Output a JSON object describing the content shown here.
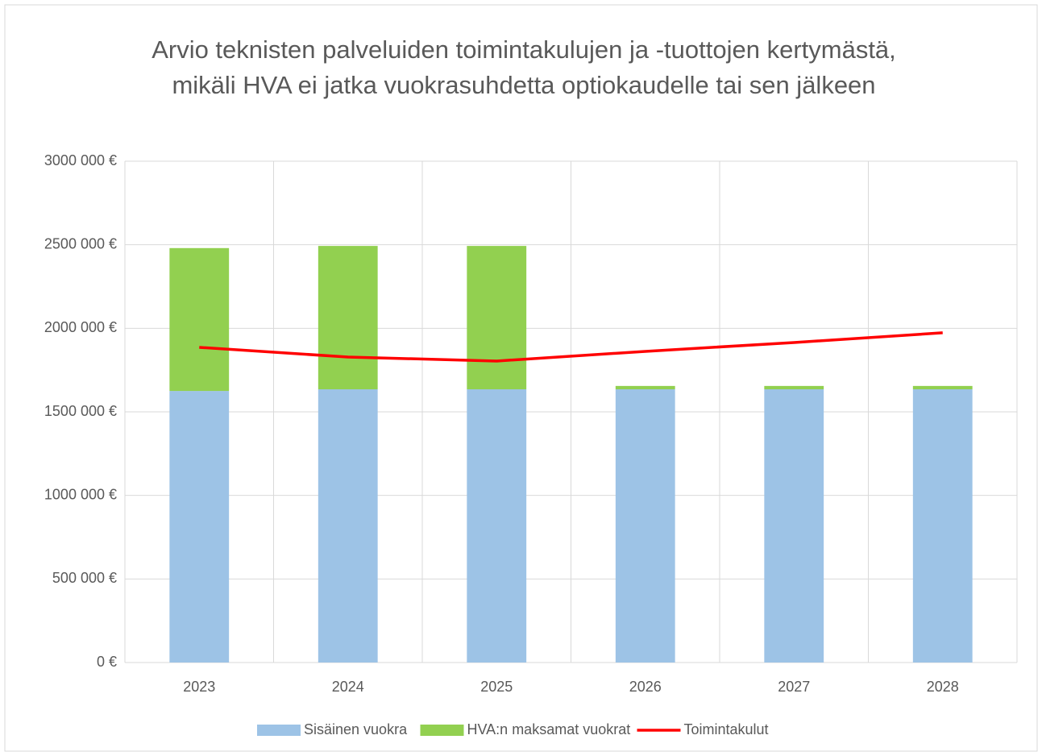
{
  "chart_data": {
    "type": "bar",
    "title": "Arvio teknisten palveluiden toimintakulujen ja -tuottojen kertymästä, mikäli HVA ei jatka vuokrasuhdetta optiokaudelle tai sen jälkeen",
    "categories": [
      "2023",
      "2024",
      "2025",
      "2026",
      "2027",
      "2028"
    ],
    "stacked": true,
    "series": [
      {
        "name": "Sisäinen vuokra",
        "type": "bar",
        "color": "#9dc3e6",
        "values": [
          1625000,
          1635000,
          1635000,
          1635000,
          1635000,
          1635000
        ]
      },
      {
        "name": "HVA:n maksamat vuokrat",
        "type": "bar",
        "color": "#92d050",
        "values": [
          855000,
          858000,
          858000,
          20000,
          20000,
          20000
        ]
      },
      {
        "name": "Toimintakulut",
        "type": "line",
        "color": "#ff0000",
        "values": [
          1886000,
          1828000,
          1804000,
          1862000,
          1915000,
          1973000
        ]
      }
    ],
    "ylim": [
      0,
      3000000
    ],
    "yticks": [
      {
        "value": 0,
        "label": "0 €"
      },
      {
        "value": 500000,
        "label": "500 000 €"
      },
      {
        "value": 1000000,
        "label": "1000 000 €"
      },
      {
        "value": 1500000,
        "label": "1500 000 €"
      },
      {
        "value": 2000000,
        "label": "2000 000 €"
      },
      {
        "value": 2500000,
        "label": "2500 000 €"
      },
      {
        "value": 3000000,
        "label": "3000 000 €"
      }
    ],
    "grid": true,
    "legend": "bottom"
  }
}
